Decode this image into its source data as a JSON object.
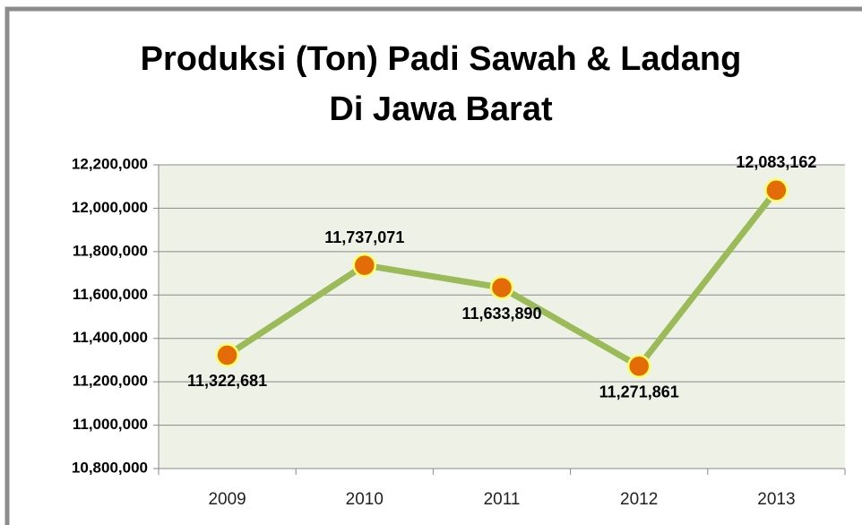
{
  "chart_data": {
    "type": "line",
    "title": [
      "Produksi (Ton) Padi Sawah & Ladang",
      "Di Jawa Barat"
    ],
    "categories": [
      "2009",
      "2010",
      "2011",
      "2012",
      "2013"
    ],
    "series": [
      {
        "name": "Produksi",
        "color": "#9bbb59",
        "marker_color": "#e36c09",
        "marker_edge_color": "#ffff66",
        "values": [
          11322681,
          11737071,
          11633890,
          11271861,
          12083162
        ],
        "value_labels": [
          "11,322,681",
          "11,737,071",
          "11,633,890",
          "11,271,861",
          "12,083,162"
        ]
      }
    ],
    "ylim": [
      10800000,
      12200000
    ],
    "yticks": [
      {
        "value": 10800000,
        "label": "10,800,000"
      },
      {
        "value": 11000000,
        "label": "11,000,000"
      },
      {
        "value": 11200000,
        "label": "11,200,000"
      },
      {
        "value": 11400000,
        "label": "11,400,000"
      },
      {
        "value": 11600000,
        "label": "11,600,000"
      },
      {
        "value": 11800000,
        "label": "11,800,000"
      },
      {
        "value": 12000000,
        "label": "12,000,000"
      },
      {
        "value": 12200000,
        "label": "12,200,000"
      }
    ],
    "grid": true,
    "plot_background": "#eef1e6"
  }
}
